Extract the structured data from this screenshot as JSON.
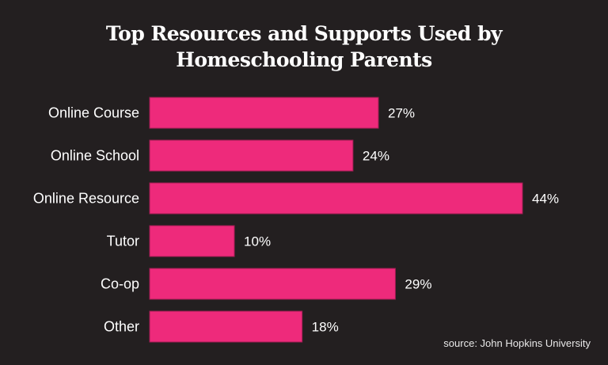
{
  "chart_data": {
    "type": "bar",
    "orientation": "horizontal",
    "title_lines": [
      "Top Resources and Supports Used by",
      "Homeschooling Parents"
    ],
    "categories": [
      "Online Course",
      "Online School",
      "Online Resource",
      "Tutor",
      "Co-op",
      "Other"
    ],
    "values": [
      27,
      24,
      44,
      10,
      29,
      18
    ],
    "value_labels": [
      "27%",
      "24%",
      "44%",
      "10%",
      "29%",
      "18%"
    ],
    "unit": "%",
    "xlim": [
      0,
      44
    ],
    "grid": false,
    "colors": {
      "bar": "#ee2a7b",
      "bar_border": "#9e1c52",
      "background": "#231f20",
      "text": "#ffffff"
    },
    "source": "source: John Hopkins University"
  }
}
